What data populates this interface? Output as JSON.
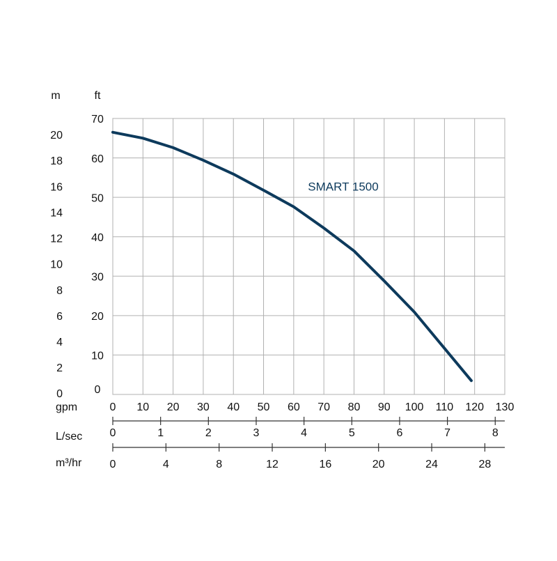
{
  "chart_data": {
    "type": "line",
    "series": [
      {
        "name": "SMART 1500",
        "color": "#0d3a5c",
        "x": [
          0,
          10,
          20,
          30,
          40,
          50,
          60,
          70,
          80,
          90,
          100,
          110,
          118.9
        ],
        "values": [
          66.5,
          65,
          62.6,
          59.4,
          55.9,
          51.8,
          47.6,
          42.2,
          36.4,
          28.8,
          20.9,
          11.7,
          3.5
        ]
      }
    ],
    "ylabel": "ft",
    "ylim": [
      0,
      70
    ],
    "yticks": [
      0,
      10,
      20,
      30,
      40,
      50,
      60,
      70
    ],
    "y2label": "m",
    "y2lim": [
      0,
      21.34
    ],
    "y2ticks": [
      0,
      2,
      4,
      6,
      8,
      10,
      12,
      14,
      16,
      18,
      20
    ],
    "xlabel": "gpm",
    "xlim": [
      0,
      130
    ],
    "xticks": [
      0,
      10,
      20,
      30,
      40,
      50,
      60,
      70,
      80,
      90,
      100,
      110,
      120,
      130
    ],
    "extra_x_axes": [
      {
        "label": "L/sec",
        "lim": [
          0,
          8.2
        ],
        "ticks": [
          0,
          1,
          2,
          3,
          4,
          5,
          6,
          7,
          8
        ]
      },
      {
        "label": "m³/hr",
        "lim": [
          0,
          29.5
        ],
        "ticks": [
          0,
          4,
          8,
          12,
          16,
          20,
          24,
          28
        ]
      }
    ],
    "grid": true
  }
}
